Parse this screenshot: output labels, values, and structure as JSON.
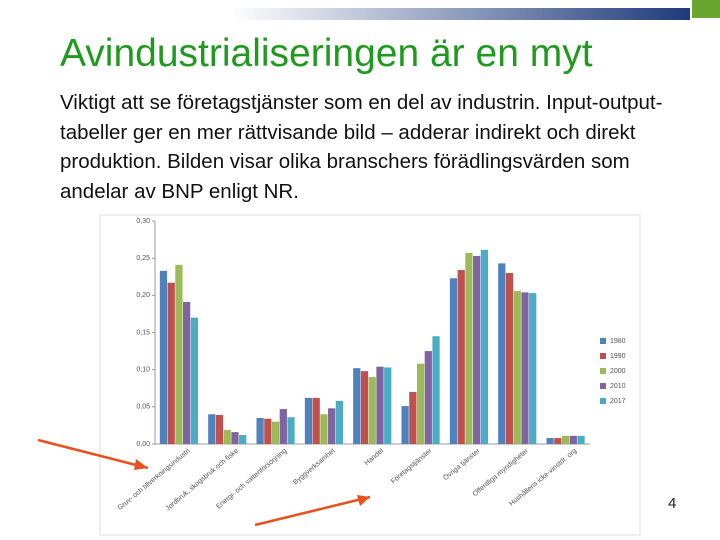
{
  "slide": {
    "title": "Avindustrialiseringen är en myt",
    "body": "Viktigt att se företagstjänster som en del av industrin. Input-output-tabeller ger en mer rättvisande bild – adderar indirekt och direkt produktion. Bilden visar olika branschers förädlingsvärden som andelar av BNP enligt NR.",
    "page_number": "4"
  },
  "chart_data": {
    "type": "bar",
    "categories": [
      "Gruv- och tillverkningsindustri",
      "Jordbruk, skogsbruk och fiske",
      "Energi- och vattenförsörjning",
      "Byggverksamhet",
      "Handel",
      "Företagstjänster",
      "Övriga tjänster",
      "Offentliga myndigheter",
      "Hushållens icke-vinstdr. org"
    ],
    "series": [
      {
        "name": "1980",
        "color": "#4f81bd",
        "values": [
          0.233,
          0.04,
          0.035,
          0.062,
          0.102,
          0.051,
          0.223,
          0.243,
          0.008
        ]
      },
      {
        "name": "1990",
        "color": "#c0504d",
        "values": [
          0.217,
          0.039,
          0.034,
          0.062,
          0.098,
          0.07,
          0.234,
          0.23,
          0.008
        ]
      },
      {
        "name": "2000",
        "color": "#9bbb59",
        "values": [
          0.241,
          0.019,
          0.03,
          0.04,
          0.09,
          0.108,
          0.257,
          0.206,
          0.011
        ]
      },
      {
        "name": "2010",
        "color": "#8064a2",
        "values": [
          0.191,
          0.016,
          0.047,
          0.048,
          0.104,
          0.125,
          0.253,
          0.204,
          0.011
        ]
      },
      {
        "name": "2017",
        "color": "#4bacc6",
        "values": [
          0.17,
          0.012,
          0.036,
          0.058,
          0.103,
          0.145,
          0.261,
          0.203,
          0.011
        ]
      }
    ],
    "ylim": [
      0,
      0.3
    ],
    "yticks": [
      {
        "value": 0,
        "label": "0,00"
      },
      {
        "value": 0.05,
        "label": "0,05"
      },
      {
        "value": 0.1,
        "label": "0,10"
      },
      {
        "value": 0.15,
        "label": "0,15"
      },
      {
        "value": 0.2,
        "label": "0,20"
      },
      {
        "value": 0.25,
        "label": "0,25"
      },
      {
        "value": 0.3,
        "label": "0,30"
      }
    ],
    "grid": false,
    "legend": "right"
  }
}
